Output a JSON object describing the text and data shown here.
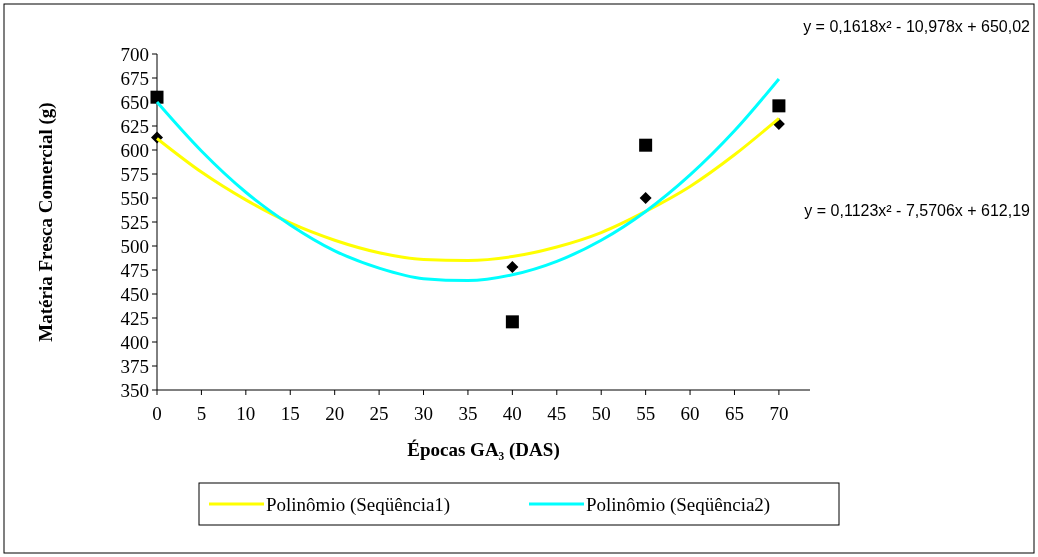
{
  "chart_data": {
    "type": "scatter",
    "xlabel": "Épocas GA₃ (DAS)",
    "ylabel": "Matéria Fresca Comercial (g)",
    "xlim": [
      0,
      73.5
    ],
    "xticks": [
      0,
      5,
      10,
      15,
      20,
      25,
      30,
      35,
      40,
      45,
      50,
      55,
      60,
      65,
      70
    ],
    "ylim": [
      350,
      700
    ],
    "yticks": [
      350,
      375,
      400,
      425,
      450,
      475,
      500,
      525,
      550,
      575,
      600,
      625,
      650,
      675,
      700
    ],
    "grid": false,
    "legend": "bottom",
    "annotations": [
      "y = 0,1618x² - 10,978x + 650,02",
      "y = 0,1123x² - 7,5706x + 612,19"
    ],
    "series": [
      {
        "marker": "diamond",
        "color": "#000000",
        "x": [
          0,
          40,
          55,
          70
        ],
        "values": [
          613,
          478,
          550,
          627
        ]
      },
      {
        "marker": "square",
        "color": "#000000",
        "x": [
          0,
          40,
          55,
          70
        ],
        "values": [
          655,
          421,
          605,
          646
        ]
      },
      {
        "type": "line",
        "name": "Polinômio (Seqüência1)",
        "color": "#ffff00",
        "marker": "none",
        "x": [
          0,
          5,
          10,
          15,
          20,
          25,
          30,
          35,
          40,
          45,
          50,
          55,
          60,
          65,
          70
        ],
        "values": [
          612,
          577,
          548,
          524,
          506,
          493,
          486,
          485,
          489,
          499,
          514,
          536,
          562,
          595,
          633
        ]
      },
      {
        "type": "line",
        "name": "Polinômio (Seqüência2)",
        "color": "#00ffff",
        "marker": "none",
        "x": [
          0,
          5,
          10,
          15,
          20,
          25,
          30,
          35,
          40,
          45,
          50,
          55,
          60,
          65,
          70
        ],
        "values": [
          650,
          599,
          556,
          522,
          495,
          477,
          466,
          464,
          470,
          484,
          506,
          536,
          574,
          620,
          674
        ]
      }
    ]
  }
}
